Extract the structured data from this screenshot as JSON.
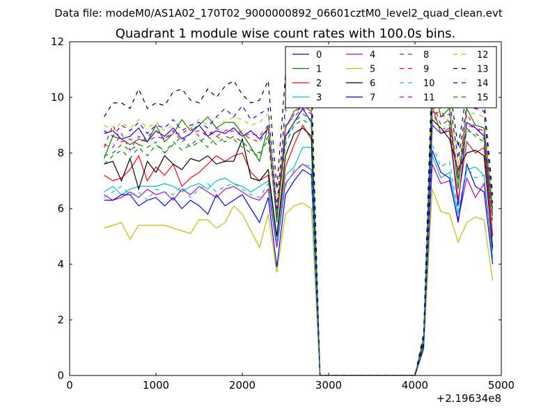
{
  "suptitle": "Data file: modeM0/AS1A02_170T02_9000000892_06601cztM0_level2_quad_clean.evt",
  "chart_data": {
    "type": "line",
    "title": "Quadrant 1 module wise count rates with 100.0s bins.",
    "xlabel": "",
    "ylabel": "",
    "x_offset_label": "+2.19634e8",
    "xlim": [
      0,
      5000
    ],
    "ylim": [
      0,
      12
    ],
    "x_ticks": [
      0,
      1000,
      2000,
      3000,
      4000,
      5000
    ],
    "y_ticks": [
      0,
      2,
      4,
      6,
      8,
      10,
      12
    ],
    "x_tick_labels": [
      "0",
      "1000",
      "2000",
      "3000",
      "4000",
      "5000"
    ],
    "y_tick_labels": [
      "0",
      "2",
      "4",
      "6",
      "8",
      "10",
      "12"
    ],
    "grid": false,
    "legend_position": "top-right",
    "x": [
      400,
      500,
      600,
      700,
      800,
      900,
      1000,
      1100,
      1200,
      1300,
      1400,
      1500,
      1600,
      1700,
      1800,
      1900,
      2000,
      2100,
      2200,
      2300,
      2400,
      2500,
      2600,
      2700,
      2800,
      2900,
      3000,
      3100,
      3200,
      3300,
      3400,
      3500,
      3600,
      3700,
      3800,
      3900,
      4000,
      4100,
      4200,
      4300,
      4400,
      4500,
      4600,
      4700,
      4800,
      4900
    ],
    "series": [
      {
        "name": "0",
        "color": "#0000ff",
        "dash": "solid",
        "values": [
          8.7,
          8.8,
          8.5,
          8.6,
          8.9,
          8.4,
          8.8,
          8.6,
          8.9,
          8.5,
          8.7,
          9.0,
          8.6,
          8.8,
          8.7,
          8.9,
          8.6,
          8.8,
          8.5,
          8.9,
          5.6,
          8.6,
          9.1,
          9.6,
          9.1,
          0,
          0,
          0,
          0,
          0,
          0,
          0,
          0,
          0,
          0,
          0,
          0,
          1.2,
          9.0,
          8.7,
          8.8,
          6.1,
          9.1,
          8.9,
          8.6,
          5.0
        ]
      },
      {
        "name": "1",
        "color": "#008000",
        "dash": "solid",
        "values": [
          7.8,
          8.6,
          8.5,
          8.3,
          8.5,
          8.4,
          9.0,
          8.4,
          8.7,
          9.2,
          8.8,
          9.0,
          9.3,
          8.9,
          9.1,
          9.1,
          8.7,
          8.2,
          7.7,
          9.0,
          5.5,
          8.9,
          9.5,
          9.7,
          9.5,
          0,
          0,
          0,
          0,
          0,
          0,
          0,
          0,
          0,
          0,
          0,
          0,
          1.2,
          10.7,
          9.3,
          9.6,
          6.7,
          9.6,
          9.0,
          8.9,
          6.0
        ]
      },
      {
        "name": "2",
        "color": "#ff0000",
        "dash": "solid",
        "values": [
          7.2,
          7.0,
          7.1,
          7.4,
          7.9,
          7.0,
          7.5,
          7.2,
          7.6,
          6.8,
          7.1,
          7.3,
          7.6,
          7.9,
          7.7,
          7.9,
          8.0,
          7.3,
          7.0,
          7.2,
          5.0,
          7.5,
          8.3,
          9.0,
          8.5,
          0,
          0,
          0,
          0,
          0,
          0,
          0,
          0,
          0,
          0,
          0,
          0,
          1.1,
          9.7,
          8.7,
          8.9,
          6.3,
          8.4,
          8.0,
          8.2,
          5.0
        ]
      },
      {
        "name": "3",
        "color": "#00bfbf",
        "dash": "solid",
        "values": [
          6.6,
          6.8,
          6.5,
          6.7,
          6.8,
          6.8,
          6.8,
          6.9,
          6.8,
          6.6,
          6.8,
          6.9,
          6.7,
          7.0,
          7.1,
          6.9,
          6.8,
          6.6,
          6.8,
          7.0,
          4.8,
          7.2,
          7.5,
          8.2,
          8.2,
          0,
          0,
          0,
          0,
          0,
          0,
          0,
          0,
          0,
          0,
          0,
          0,
          1.0,
          7.9,
          7.1,
          7.3,
          5.8,
          7.4,
          7.5,
          7.2,
          4.2
        ]
      },
      {
        "name": "4",
        "color": "#bf00bf",
        "dash": "solid",
        "values": [
          6.5,
          6.3,
          6.4,
          6.6,
          6.4,
          6.7,
          6.5,
          6.6,
          6.3,
          6.7,
          6.5,
          6.8,
          6.6,
          6.4,
          6.7,
          6.8,
          6.6,
          6.4,
          6.3,
          6.7,
          4.6,
          6.9,
          7.3,
          7.6,
          7.4,
          0,
          0,
          0,
          0,
          0,
          0,
          0,
          0,
          0,
          0,
          0,
          0,
          1.0,
          7.6,
          6.9,
          7.0,
          5.6,
          7.1,
          6.4,
          6.9,
          4.5
        ]
      },
      {
        "name": "5",
        "color": "#bfbf00",
        "dash": "solid",
        "values": [
          5.3,
          5.4,
          5.5,
          4.9,
          5.4,
          5.4,
          5.4,
          5.4,
          5.3,
          5.2,
          5.1,
          5.6,
          5.6,
          5.3,
          5.5,
          6.1,
          5.8,
          5.2,
          4.6,
          5.8,
          3.7,
          5.8,
          6.1,
          6.2,
          6.0,
          0,
          0,
          0,
          0,
          0,
          0,
          0,
          0,
          0,
          0,
          0,
          0,
          0.9,
          6.7,
          5.9,
          5.8,
          4.8,
          5.5,
          5.7,
          5.6,
          3.4
        ]
      },
      {
        "name": "6",
        "color": "#000000",
        "dash": "solid",
        "values": [
          7.6,
          7.7,
          7.0,
          7.8,
          6.7,
          7.7,
          7.3,
          7.9,
          7.6,
          7.4,
          7.8,
          7.7,
          7.9,
          7.6,
          7.7,
          7.7,
          8.5,
          7.1,
          7.0,
          7.4,
          5.0,
          7.9,
          8.7,
          8.9,
          8.6,
          0,
          0,
          0,
          0,
          0,
          0,
          0,
          0,
          0,
          0,
          0,
          0,
          1.2,
          9.2,
          8.9,
          8.5,
          7.4,
          8.0,
          8.1,
          7.9,
          4.6
        ]
      },
      {
        "name": "7",
        "color": "#0000ff",
        "dash": "solid",
        "values": [
          6.3,
          6.3,
          6.5,
          6.5,
          6.1,
          6.3,
          6.4,
          6.1,
          6.4,
          6.0,
          6.3,
          6.1,
          5.8,
          6.5,
          6.1,
          6.3,
          6.5,
          6.0,
          5.5,
          6.4,
          3.9,
          6.5,
          7.0,
          7.4,
          7.2,
          0,
          0,
          0,
          0,
          0,
          0,
          0,
          0,
          0,
          0,
          0,
          0,
          1.0,
          8.1,
          7.3,
          7.1,
          5.5,
          7.6,
          6.8,
          6.6,
          4.0
        ]
      },
      {
        "name": "8",
        "color": "#008000",
        "dash": "dashed",
        "values": [
          7.9,
          8.0,
          8.3,
          8.1,
          8.3,
          8.2,
          8.4,
          8.0,
          8.3,
          8.6,
          8.2,
          8.4,
          8.6,
          8.3,
          8.6,
          8.5,
          8.2,
          8.0,
          7.9,
          8.5,
          5.7,
          8.3,
          9.0,
          9.2,
          9.0,
          0,
          0,
          0,
          0,
          0,
          0,
          0,
          0,
          0,
          0,
          0,
          0,
          1.3,
          9.5,
          8.8,
          9.0,
          7.0,
          8.8,
          8.7,
          8.5,
          5.7
        ]
      },
      {
        "name": "9",
        "color": "#ff0000",
        "dash": "dashed",
        "values": [
          8.2,
          9.0,
          8.4,
          8.5,
          8.3,
          8.6,
          8.8,
          8.5,
          8.7,
          8.7,
          8.9,
          8.6,
          8.8,
          8.6,
          8.8,
          8.9,
          8.7,
          8.5,
          8.4,
          8.9,
          5.8,
          8.9,
          9.4,
          9.7,
          9.5,
          0,
          0,
          0,
          0,
          0,
          0,
          0,
          0,
          0,
          0,
          0,
          0,
          1.3,
          9.4,
          9.5,
          9.1,
          7.3,
          9.4,
          8.9,
          8.8,
          5.5
        ]
      },
      {
        "name": "10",
        "color": "#00bfbf",
        "dash": "dashed",
        "values": [
          6.4,
          6.6,
          6.8,
          6.5,
          6.6,
          6.3,
          6.7,
          6.6,
          6.5,
          6.8,
          6.4,
          6.7,
          6.9,
          6.6,
          6.8,
          6.9,
          6.7,
          6.5,
          6.4,
          6.9,
          4.8,
          6.8,
          7.4,
          7.6,
          7.5,
          0,
          0,
          0,
          0,
          0,
          0,
          0,
          0,
          0,
          0,
          0,
          0,
          1.1,
          8.3,
          7.5,
          7.7,
          5.9,
          7.5,
          7.1,
          7.2,
          4.3
        ]
      },
      {
        "name": "11",
        "color": "#bf00bf",
        "dash": "dashed",
        "values": [
          8.3,
          8.2,
          8.7,
          8.1,
          8.6,
          8.4,
          8.6,
          8.5,
          8.8,
          8.4,
          8.7,
          8.8,
          8.6,
          8.9,
          8.7,
          8.8,
          8.6,
          8.7,
          8.6,
          9.0,
          5.9,
          9.0,
          9.3,
          9.6,
          9.4,
          0,
          0,
          0,
          0,
          0,
          0,
          0,
          0,
          0,
          0,
          0,
          0,
          1.3,
          9.5,
          9.3,
          9.4,
          7.2,
          9.0,
          8.9,
          8.7,
          5.8
        ]
      },
      {
        "name": "12",
        "color": "#bfbf00",
        "dash": "dashed",
        "values": [
          9.0,
          8.8,
          9.1,
          8.9,
          9.2,
          8.9,
          9.1,
          8.8,
          9.0,
          9.1,
          8.9,
          9.2,
          9.0,
          9.3,
          9.1,
          9.3,
          9.2,
          9.0,
          9.1,
          9.4,
          6.2,
          9.5,
          9.9,
          10.2,
          10.0,
          0,
          0,
          0,
          0,
          0,
          0,
          0,
          0,
          0,
          0,
          0,
          0,
          1.4,
          10.0,
          9.6,
          9.8,
          7.6,
          9.5,
          9.4,
          9.3,
          6.1
        ]
      },
      {
        "name": "13",
        "color": "#000000",
        "dash": "dashed",
        "values": [
          9.3,
          9.8,
          9.8,
          9.6,
          10.3,
          9.6,
          9.8,
          9.7,
          10.2,
          10.3,
          9.9,
          9.8,
          10.3,
          10.0,
          10.4,
          10.6,
          10.1,
          9.8,
          9.9,
          10.6,
          6.7,
          10.8,
          11.0,
          11.1,
          10.8,
          0,
          0,
          0,
          0,
          0,
          0,
          0,
          0,
          0,
          0,
          0,
          0,
          1.5,
          11.3,
          10.5,
          10.4,
          8.2,
          10.2,
          10.0,
          9.9,
          6.5
        ]
      },
      {
        "name": "14",
        "color": "#0000ff",
        "dash": "dashed",
        "values": [
          8.8,
          8.6,
          9.0,
          8.8,
          9.1,
          8.7,
          9.0,
          8.9,
          9.2,
          8.8,
          9.0,
          9.1,
          8.9,
          9.3,
          9.6,
          9.3,
          9.7,
          9.2,
          9.4,
          9.6,
          6.0,
          9.7,
          10.0,
          10.3,
          10.1,
          0,
          0,
          0,
          0,
          0,
          0,
          0,
          0,
          0,
          0,
          0,
          0,
          1.4,
          10.2,
          9.8,
          9.9,
          7.8,
          9.7,
          9.6,
          9.5,
          6.2
        ]
      },
      {
        "name": "15",
        "color": "#008000",
        "dash": "dashed",
        "values": [
          7.6,
          7.9,
          8.1,
          7.8,
          8.2,
          7.9,
          8.3,
          8.0,
          8.4,
          8.1,
          8.3,
          8.5,
          8.2,
          8.6,
          8.4,
          8.6,
          8.4,
          8.1,
          8.0,
          8.6,
          5.6,
          8.5,
          9.1,
          9.4,
          9.2,
          0,
          0,
          0,
          0,
          0,
          0,
          0,
          0,
          0,
          0,
          0,
          0,
          1.3,
          9.9,
          9.0,
          9.2,
          7.1,
          8.9,
          8.6,
          8.4,
          5.6
        ]
      }
    ]
  }
}
